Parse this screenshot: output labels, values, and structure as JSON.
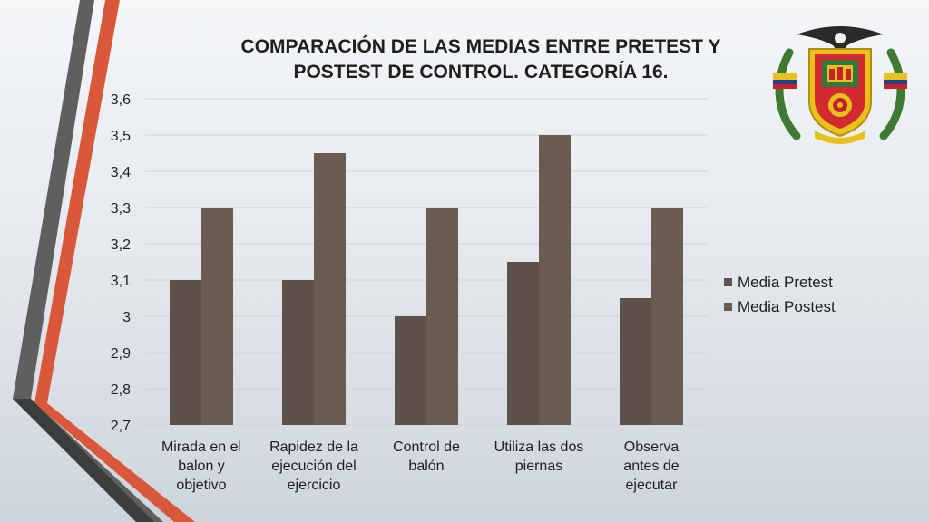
{
  "colors": {
    "pretest": "#5d5149",
    "postest": "#6a5c51",
    "grid": "#cfd3d6",
    "stripe_gray": "#5c5c5c",
    "stripe_orange": "#d75a3f"
  },
  "emblem": {
    "icon": "coat-of-arms-icon",
    "label": ""
  },
  "chart_data": {
    "type": "bar",
    "title": "COMPARACIÓN DE LAS MEDIAS ENTRE PRETEST Y POSTEST DE CONTROL. CATEGORÍA 16.",
    "title_lines": [
      "COMPARACIÓN DE LAS MEDIAS ENTRE PRETEST Y",
      "POSTEST DE CONTROL. CATEGORÍA 16."
    ],
    "categories": [
      [
        "Mirada en el",
        "balon y",
        "objetivo"
      ],
      [
        "Rapidez de la",
        "ejecución del",
        "ejercicio"
      ],
      [
        "Control de",
        "balón"
      ],
      [
        "Utiliza las dos",
        "piernas"
      ],
      [
        "Observa",
        "antes de",
        "ejecutar"
      ]
    ],
    "series": [
      {
        "name": "Media Pretest",
        "values": [
          3.1,
          3.1,
          3.0,
          3.15,
          3.05
        ]
      },
      {
        "name": "Media Postest",
        "values": [
          3.3,
          3.45,
          3.3,
          3.5,
          3.3
        ]
      }
    ],
    "ylim": [
      2.7,
      3.6
    ],
    "yticks": [
      "2,7",
      "2,8",
      "2,9",
      "3",
      "3,1",
      "3,2",
      "3,3",
      "3,4",
      "3,5",
      "3,6"
    ],
    "grid": true,
    "legend": "right"
  }
}
